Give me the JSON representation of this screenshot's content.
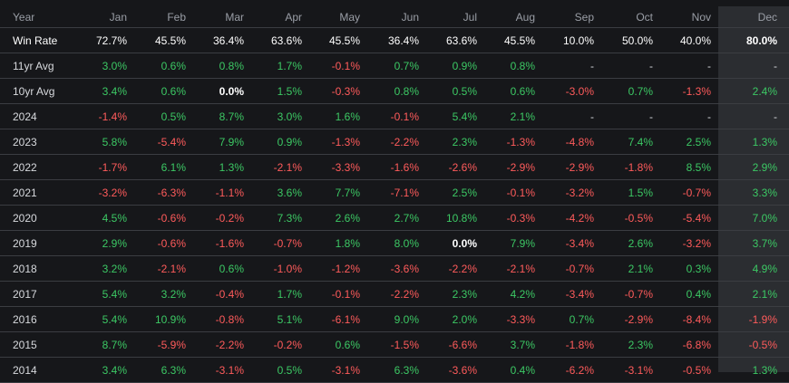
{
  "table": {
    "header": [
      "Year",
      "Jan",
      "Feb",
      "Mar",
      "Apr",
      "May",
      "Jun",
      "Jul",
      "Aug",
      "Sep",
      "Oct",
      "Nov",
      "Dec"
    ],
    "rows": [
      [
        "Win Rate",
        "72.7%",
        "45.5%",
        "36.4%",
        "63.6%",
        "45.5%",
        "36.4%",
        "63.6%",
        "45.5%",
        "10.0%",
        "50.0%",
        "40.0%",
        "80.0%"
      ],
      [
        "11yr Avg",
        "3.0%",
        "0.6%",
        "0.8%",
        "1.7%",
        "-0.1%",
        "0.7%",
        "0.9%",
        "0.8%",
        "-",
        "-",
        "-",
        "-"
      ],
      [
        "10yr Avg",
        "3.4%",
        "0.6%",
        "0.0%",
        "1.5%",
        "-0.3%",
        "0.8%",
        "0.5%",
        "0.6%",
        "-3.0%",
        "0.7%",
        "-1.3%",
        "2.4%"
      ],
      [
        "2024",
        "-1.4%",
        "0.5%",
        "8.7%",
        "3.0%",
        "1.6%",
        "-0.1%",
        "5.4%",
        "2.1%",
        "-",
        "-",
        "-",
        "-"
      ],
      [
        "2023",
        "5.8%",
        "-5.4%",
        "7.9%",
        "0.9%",
        "-1.3%",
        "-2.2%",
        "2.3%",
        "-1.3%",
        "-4.8%",
        "7.4%",
        "2.5%",
        "1.3%"
      ],
      [
        "2022",
        "-1.7%",
        "6.1%",
        "1.3%",
        "-2.1%",
        "-3.3%",
        "-1.6%",
        "-2.6%",
        "-2.9%",
        "-2.9%",
        "-1.8%",
        "8.5%",
        "2.9%"
      ],
      [
        "2021",
        "-3.2%",
        "-6.3%",
        "-1.1%",
        "3.6%",
        "7.7%",
        "-7.1%",
        "2.5%",
        "-0.1%",
        "-3.2%",
        "1.5%",
        "-0.7%",
        "3.3%"
      ],
      [
        "2020",
        "4.5%",
        "-0.6%",
        "-0.2%",
        "7.3%",
        "2.6%",
        "2.7%",
        "10.8%",
        "-0.3%",
        "-4.2%",
        "-0.5%",
        "-5.4%",
        "7.0%"
      ],
      [
        "2019",
        "2.9%",
        "-0.6%",
        "-1.6%",
        "-0.7%",
        "1.8%",
        "8.0%",
        "0.0%",
        "7.9%",
        "-3.4%",
        "2.6%",
        "-3.2%",
        "3.7%"
      ],
      [
        "2018",
        "3.2%",
        "-2.1%",
        "0.6%",
        "-1.0%",
        "-1.2%",
        "-3.6%",
        "-2.2%",
        "-2.1%",
        "-0.7%",
        "2.1%",
        "0.3%",
        "4.9%"
      ],
      [
        "2017",
        "5.4%",
        "3.2%",
        "-0.4%",
        "1.7%",
        "-0.1%",
        "-2.2%",
        "2.3%",
        "4.2%",
        "-3.4%",
        "-0.7%",
        "0.4%",
        "2.1%"
      ],
      [
        "2016",
        "5.4%",
        "10.9%",
        "-0.8%",
        "5.1%",
        "-6.1%",
        "9.0%",
        "2.0%",
        "-3.3%",
        "0.7%",
        "-2.9%",
        "-8.4%",
        "-1.9%"
      ],
      [
        "2015",
        "8.7%",
        "-5.9%",
        "-2.2%",
        "-0.2%",
        "0.6%",
        "-1.5%",
        "-6.6%",
        "3.7%",
        "-1.8%",
        "2.3%",
        "-6.8%",
        "-0.5%"
      ],
      [
        "2014",
        "3.4%",
        "6.3%",
        "-3.1%",
        "0.5%",
        "-3.1%",
        "6.3%",
        "-3.6%",
        "0.4%",
        "-6.2%",
        "-3.1%",
        "-0.5%",
        "1.3%"
      ]
    ]
  },
  "colors": {
    "positive": "#3cc864",
    "negative": "#ff5b5b",
    "background": "#16171a",
    "highlight_column": "#2b2d31"
  }
}
